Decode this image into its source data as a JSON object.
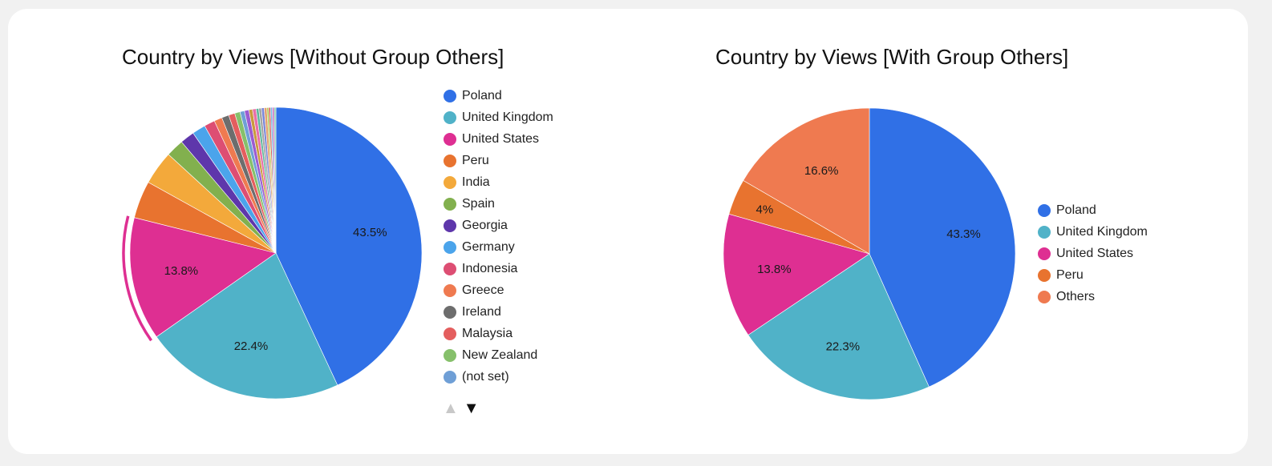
{
  "chart_data": [
    {
      "type": "pie",
      "title": "Country by Views [Without Group Others]",
      "colors": [
        "#3070e6",
        "#50b2c8",
        "#de2f92",
        "#e8732f",
        "#f3a93b",
        "#82b04e",
        "#5e37ab",
        "#4ba4eb",
        "#dd4e73",
        "#ef7a50",
        "#6d6d6d",
        "#e45e5e",
        "#86c06b",
        "#6f9fd6"
      ],
      "slices": [
        {
          "label": "Poland",
          "value": 43.5,
          "display": "43.5%"
        },
        {
          "label": "United Kingdom",
          "value": 22.4,
          "display": "22.4%"
        },
        {
          "label": "United States",
          "value": 13.8,
          "display": "13.8%"
        },
        {
          "label": "Peru",
          "value": 4.2
        },
        {
          "label": "India",
          "value": 3.8
        },
        {
          "label": "Spain",
          "value": 2.0
        },
        {
          "label": "Georgia",
          "value": 1.6
        },
        {
          "label": "Germany",
          "value": 1.5
        },
        {
          "label": "Indonesia",
          "value": 1.2
        },
        {
          "label": "Greece",
          "value": 0.9
        },
        {
          "label": "Ireland",
          "value": 0.8
        },
        {
          "label": "Malaysia",
          "value": 0.7
        },
        {
          "label": "New Zealand",
          "value": 0.6
        },
        {
          "label": "(not set)",
          "value": 0.5
        },
        {
          "label": "",
          "value": 0.5
        },
        {
          "label": "",
          "value": 0.4
        },
        {
          "label": "",
          "value": 0.4
        },
        {
          "label": "",
          "value": 0.3
        },
        {
          "label": "",
          "value": 0.3
        },
        {
          "label": "",
          "value": 0.3
        },
        {
          "label": "",
          "value": 0.3
        },
        {
          "label": "",
          "value": 0.2
        },
        {
          "label": "",
          "value": 0.2
        },
        {
          "label": "",
          "value": 0.2
        },
        {
          "label": "",
          "value": 0.2
        },
        {
          "label": "",
          "value": 0.2
        }
      ],
      "extra_colors": [
        "#9c5bd1",
        "#c99a3c",
        "#e86fa8",
        "#5cb79c",
        "#a5a5a5",
        "#7a86d8",
        "#e3a16f",
        "#b0c94f",
        "#d86060",
        "#77b4e0",
        "#c46bbf",
        "#8fd0b1"
      ],
      "legend": [
        "Poland",
        "United Kingdom",
        "United States",
        "Peru",
        "India",
        "Spain",
        "Georgia",
        "Germany",
        "Indonesia",
        "Greece",
        "Ireland",
        "Malaysia",
        "New Zealand",
        "(not set)"
      ],
      "highlighted_slice": "United States",
      "legend_pager": {
        "up": "▲",
        "down": "▼"
      }
    },
    {
      "type": "pie",
      "title": "Country by Views [With Group Others]",
      "colors": [
        "#3070e6",
        "#50b2c8",
        "#de2f92",
        "#e8732f",
        "#ef7a50"
      ],
      "slices": [
        {
          "label": "Poland",
          "value": 43.3,
          "display": "43.3%"
        },
        {
          "label": "United Kingdom",
          "value": 22.3,
          "display": "22.3%"
        },
        {
          "label": "United States",
          "value": 13.8,
          "display": "13.8%"
        },
        {
          "label": "Peru",
          "value": 4.0,
          "display": "4%"
        },
        {
          "label": "Others",
          "value": 16.6,
          "display": "16.6%"
        }
      ],
      "legend": [
        "Poland",
        "United Kingdom",
        "United States",
        "Peru",
        "Others"
      ]
    }
  ]
}
